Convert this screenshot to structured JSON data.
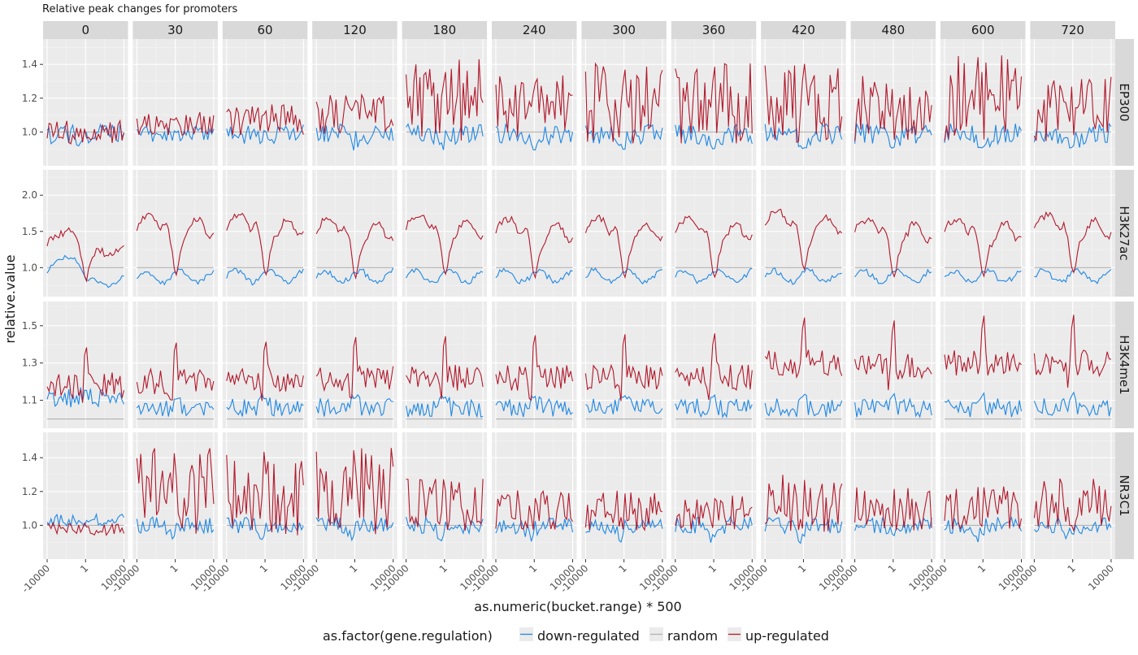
{
  "chart_data": {
    "type": "line",
    "title": "Relative peak changes for promoters",
    "xlabel": "as.numeric(bucket.range) * 500",
    "ylabel": "relative.value",
    "x_tick_labels": [
      "-10000",
      "1",
      "10000"
    ],
    "x_range": [
      -10000,
      10000
    ],
    "n_points": 40,
    "columns": [
      "0",
      "30",
      "60",
      "120",
      "180",
      "240",
      "300",
      "360",
      "420",
      "480",
      "600",
      "720"
    ],
    "rows": [
      {
        "label": "EP300",
        "ylim": [
          0.8,
          1.55
        ],
        "yticks": [
          "1.0",
          "1.2",
          "1.4"
        ],
        "ytick_values": [
          1.0,
          1.2,
          1.4
        ]
      },
      {
        "label": "H3K27ac",
        "ylim": [
          0.6,
          2.35
        ],
        "yticks": [
          "1.0",
          "1.5",
          "2.0"
        ],
        "ytick_values": [
          1.0,
          1.5,
          2.0
        ]
      },
      {
        "label": "H3K4me1",
        "ylim": [
          0.95,
          1.63
        ],
        "yticks": [
          "1.1",
          "1.3",
          "1.5"
        ],
        "ytick_values": [
          1.1,
          1.3,
          1.5
        ]
      },
      {
        "label": "NR3C1",
        "ylim": [
          0.8,
          1.55
        ],
        "yticks": [
          "1.0",
          "1.2",
          "1.4"
        ],
        "ytick_values": [
          1.0,
          1.2,
          1.4
        ]
      }
    ],
    "legend": {
      "title": "as.factor(gene.regulation)",
      "position": "bottom",
      "entries": [
        {
          "name": "down-regulated",
          "color": "#1e88e5"
        },
        {
          "name": "random",
          "color": "#b3b3b3"
        },
        {
          "name": "up-regulated",
          "color": "#b2182b"
        }
      ]
    },
    "series_summary": {
      "random": "flat at 1.0 in all panels",
      "EP300": {
        "up_mean_by_column": [
          1.0,
          1.05,
          1.07,
          1.1,
          1.18,
          1.14,
          1.17,
          1.17,
          1.17,
          1.14,
          1.19,
          1.14
        ],
        "down_mean": 0.99
      },
      "H3K27ac": {
        "up_mean_by_column": [
          1.25,
          1.55,
          1.55,
          1.5,
          1.55,
          1.5,
          1.5,
          1.5,
          1.6,
          1.5,
          1.5,
          1.55
        ],
        "down_mean": 0.9
      },
      "H3K4me1": {
        "up_mean_by_column": [
          1.18,
          1.2,
          1.2,
          1.22,
          1.22,
          1.22,
          1.22,
          1.22,
          1.3,
          1.28,
          1.3,
          1.3
        ],
        "down_mean": 1.08
      },
      "NR3C1": {
        "up_mean_by_column": [
          0.98,
          1.2,
          1.2,
          1.2,
          1.12,
          1.09,
          1.1,
          1.08,
          1.13,
          1.1,
          1.1,
          1.12
        ],
        "down_mean": 1.0
      }
    },
    "colors": {
      "panel_bg": "#ebebeb",
      "strip_bg": "#d9d9d9",
      "grid_major": "#ffffff",
      "text": "#1a1a1a",
      "axis_text": "#4d4d4d"
    }
  }
}
